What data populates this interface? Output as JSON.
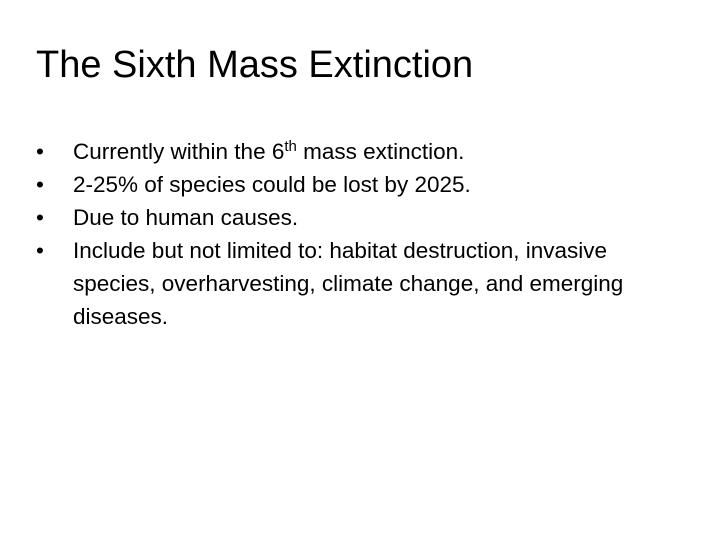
{
  "slide": {
    "title": "The Sixth Mass Extinction",
    "bullet_symbol": "•",
    "bullets": [
      {
        "text_before": "Currently within the 6",
        "superscript": "th",
        "text_after": " mass extinction."
      },
      {
        "text": "2-25% of species could be lost by 2025."
      },
      {
        "text": "Due to human causes."
      },
      {
        "text": "Include but not limited to: habitat destruction, invasive species, overharvesting, climate change, and emerging diseases."
      }
    ]
  }
}
